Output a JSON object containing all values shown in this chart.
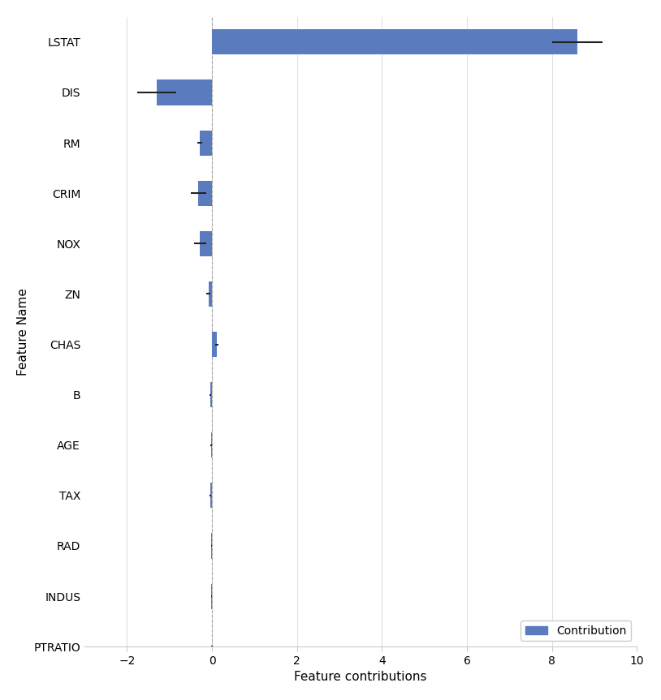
{
  "features": [
    "LSTAT",
    "DIS",
    "RM",
    "CRIM",
    "NOX",
    "ZN",
    "CHAS",
    "B",
    "AGE",
    "TAX",
    "RAD",
    "INDUS",
    "PTRATIO"
  ],
  "contributions": [
    8.6,
    -1.3,
    -0.28,
    -0.32,
    -0.28,
    -0.08,
    0.12,
    -0.04,
    -0.02,
    -0.03,
    -0.01,
    -0.01,
    0.0
  ],
  "errors": [
    0.6,
    0.45,
    0.06,
    0.18,
    0.14,
    0.05,
    0.04,
    0.02,
    0.02,
    0.02,
    0.01,
    0.01,
    0.01
  ],
  "bar_color": "#5b7bbf",
  "background_color": "#ffffff",
  "xlabel": "Feature contributions",
  "ylabel": "Feature Name",
  "xlim": [
    -3,
    10
  ],
  "xticks": [
    -2,
    0,
    2,
    4,
    6,
    8,
    10
  ],
  "legend_label": "Contribution",
  "grid_color": "#e0e0e0"
}
